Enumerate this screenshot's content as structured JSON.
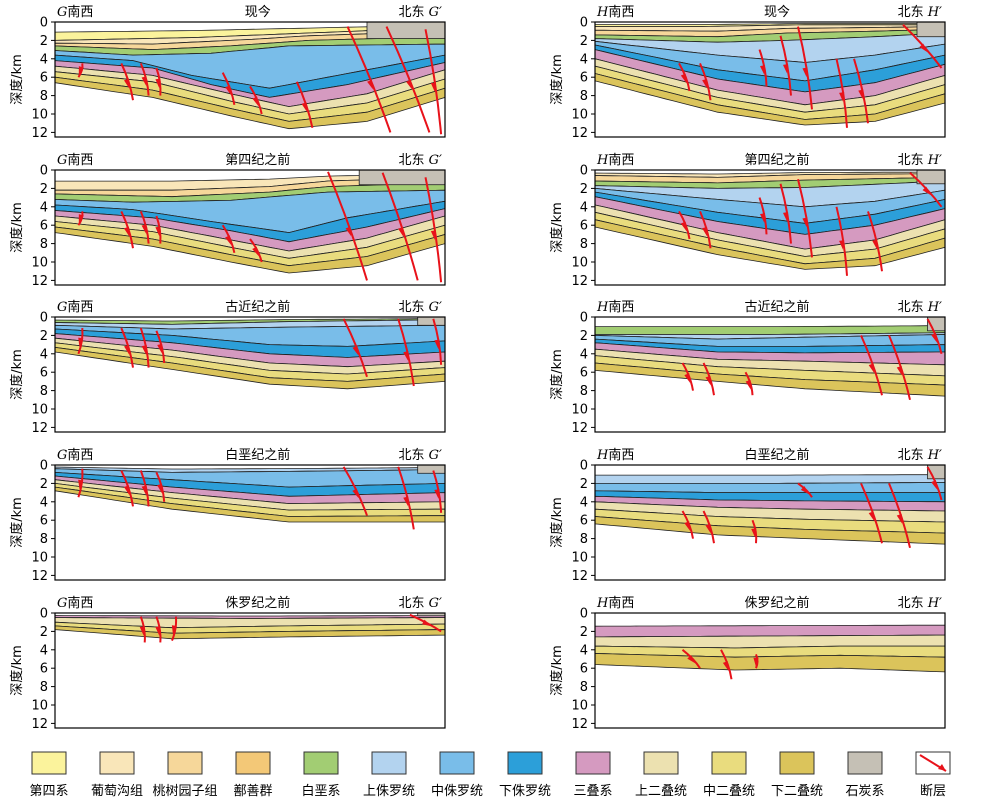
{
  "colors": {
    "q": "#fbf39c",
    "putaogou": "#f9e6b9",
    "taoshu": "#f6d79a",
    "shanshan": "#f3c877",
    "k": "#a2cd73",
    "j3": "#b3d3ef",
    "j2": "#79bde9",
    "j1": "#2c9fd9",
    "t": "#d59ac0",
    "p3": "#ece1b0",
    "p2": "#e9dc7e",
    "p1": "#dbc45b",
    "c": "#c5c0b5",
    "fault": "#e8121a"
  },
  "legend": [
    {
      "key": "q",
      "label": "第四系"
    },
    {
      "key": "putaogou",
      "label": "葡萄沟组"
    },
    {
      "key": "taoshu",
      "label": "桃树园子组"
    },
    {
      "key": "shanshan",
      "label": "鄯善群"
    },
    {
      "key": "k",
      "label": "白垩系"
    },
    {
      "key": "j3",
      "label": "上侏罗统"
    },
    {
      "key": "j2",
      "label": "中侏罗统"
    },
    {
      "key": "j1",
      "label": "下侏罗统"
    },
    {
      "key": "t",
      "label": "三叠系"
    },
    {
      "key": "p3",
      "label": "上二叠统"
    },
    {
      "key": "p2",
      "label": "中二叠统"
    },
    {
      "key": "p1",
      "label": "下二叠统"
    },
    {
      "key": "c",
      "label": "石炭系"
    },
    {
      "key": "fault",
      "label": "断层"
    }
  ],
  "axis": {
    "ylabel": "深度/km",
    "ticks": [
      "0",
      "2",
      "4",
      "6",
      "8",
      "10",
      "12"
    ]
  },
  "profiles": {
    "G": {
      "left_letter": "G",
      "left_dir": "南西",
      "right_dir": "北东",
      "right_letter": "G",
      "prime": "′"
    },
    "H": {
      "left_letter": "H",
      "left_dir": "南西",
      "right_dir": "北东",
      "right_letter": "H",
      "prime": "′"
    }
  },
  "stages": [
    {
      "id": "present",
      "title": "现今"
    },
    {
      "id": "pre-quaternary",
      "title": "第四纪之前"
    },
    {
      "id": "pre-paleogene",
      "title": "古近纪之前"
    },
    {
      "id": "pre-cretaceous",
      "title": "白垩纪之前"
    },
    {
      "id": "pre-jurassic",
      "title": "侏罗纪之前"
    }
  ]
}
